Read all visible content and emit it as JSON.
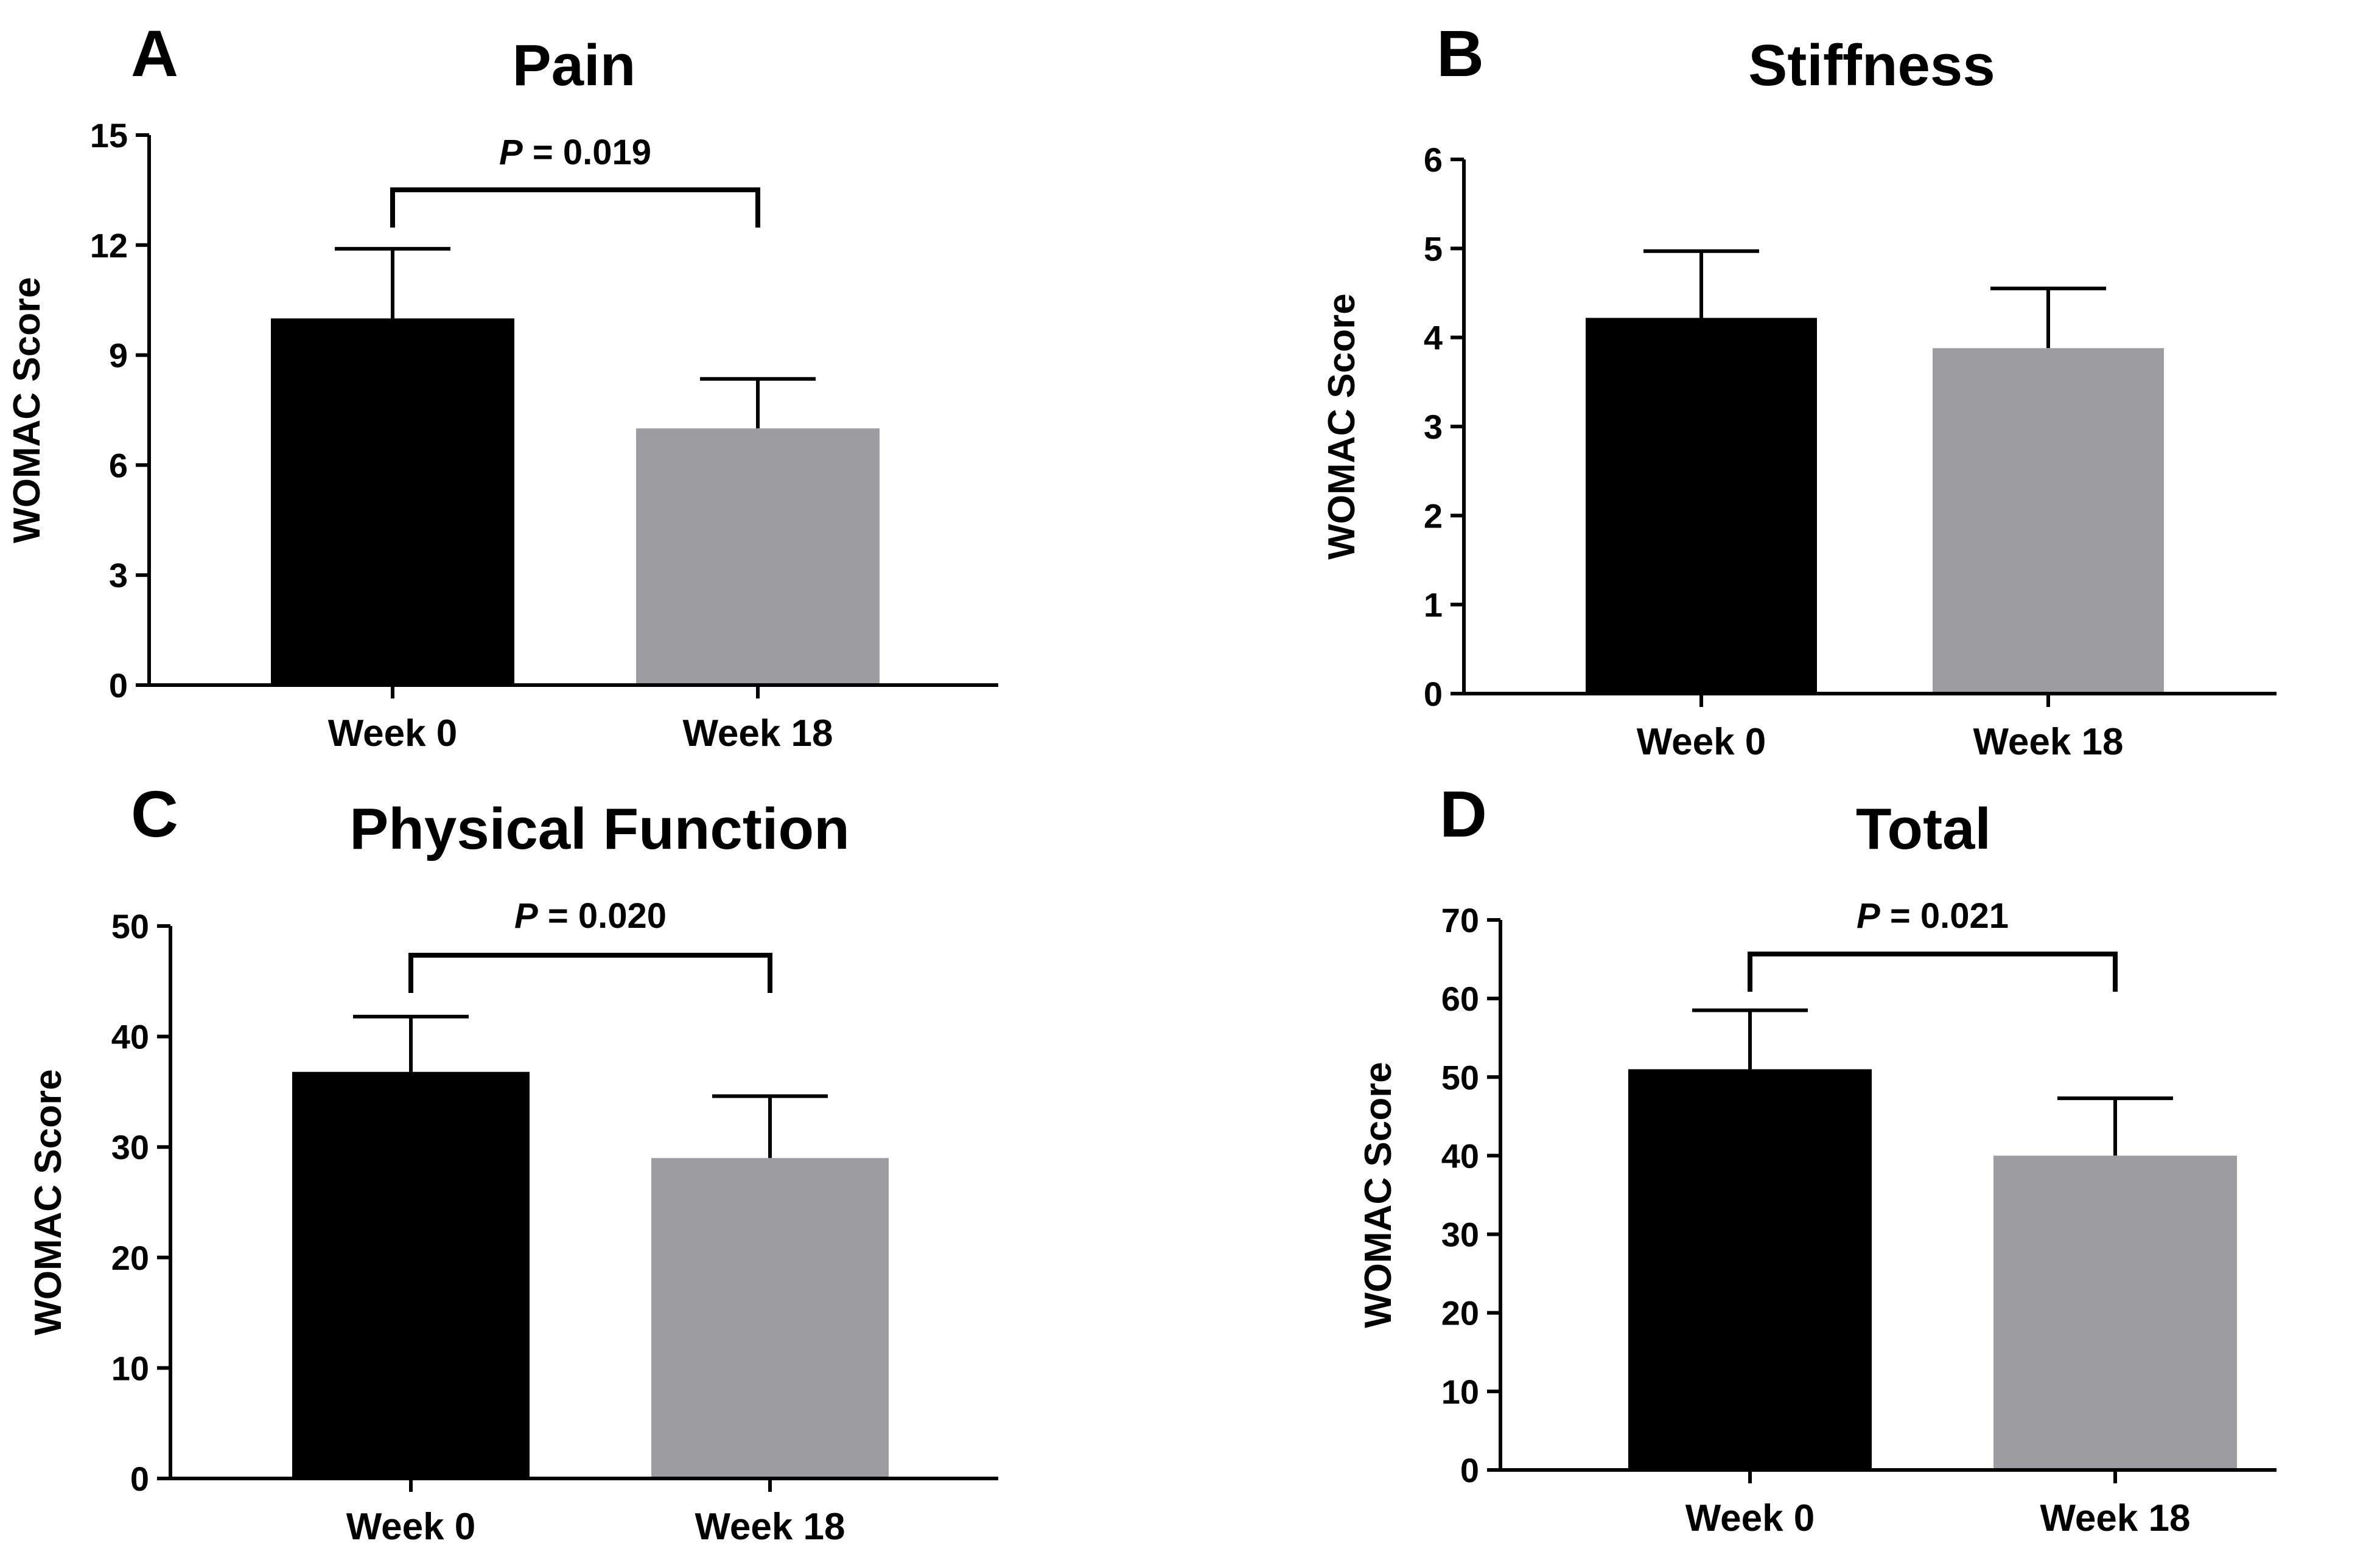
{
  "chart_data": [
    {
      "panel": "A",
      "type": "bar",
      "title": "Pain",
      "ylabel": "WOMAC Score",
      "xlabel": "",
      "categories": [
        "Week 0",
        "Week 18"
      ],
      "values": [
        10.0,
        7.0
      ],
      "error_upper": [
        11.9,
        8.35
      ],
      "bar_colors": [
        "#000000",
        "#9d9da1"
      ],
      "ylim": [
        0,
        15
      ],
      "yticks": [
        0,
        3,
        6,
        9,
        12,
        15
      ],
      "significance": {
        "p_label": "P",
        "p_value": "= 0.019"
      }
    },
    {
      "panel": "B",
      "type": "bar",
      "title": "Stiffness",
      "ylabel": "WOMAC Score",
      "xlabel": "",
      "categories": [
        "Week 0",
        "Week 18"
      ],
      "values": [
        4.22,
        3.88
      ],
      "error_upper": [
        4.97,
        4.55
      ],
      "bar_colors": [
        "#000000",
        "#9d9da1"
      ],
      "ylim": [
        0,
        6
      ],
      "yticks": [
        0,
        1,
        2,
        3,
        4,
        5,
        6
      ],
      "significance": null
    },
    {
      "panel": "C",
      "type": "bar",
      "title": "Physical Function",
      "ylabel": "WOMAC Score",
      "xlabel": "",
      "categories": [
        "Week 0",
        "Week 18"
      ],
      "values": [
        36.8,
        29.0
      ],
      "error_upper": [
        41.8,
        34.6
      ],
      "bar_colors": [
        "#000000",
        "#9d9da1"
      ],
      "ylim": [
        0,
        50
      ],
      "yticks": [
        0,
        10,
        20,
        30,
        40,
        50
      ],
      "significance": {
        "p_label": "P",
        "p_value": "= 0.020"
      }
    },
    {
      "panel": "D",
      "type": "bar",
      "title": "Total",
      "ylabel": "WOMAC Score",
      "xlabel": "",
      "categories": [
        "Week 0",
        "Week 18"
      ],
      "values": [
        51.0,
        40.0
      ],
      "error_upper": [
        58.5,
        47.3
      ],
      "bar_colors": [
        "#000000",
        "#9d9da1"
      ],
      "ylim": [
        0,
        70
      ],
      "yticks": [
        0,
        10,
        20,
        30,
        40,
        50,
        60,
        70
      ],
      "significance": {
        "p_label": "P",
        "p_value": "= 0.021"
      }
    }
  ]
}
